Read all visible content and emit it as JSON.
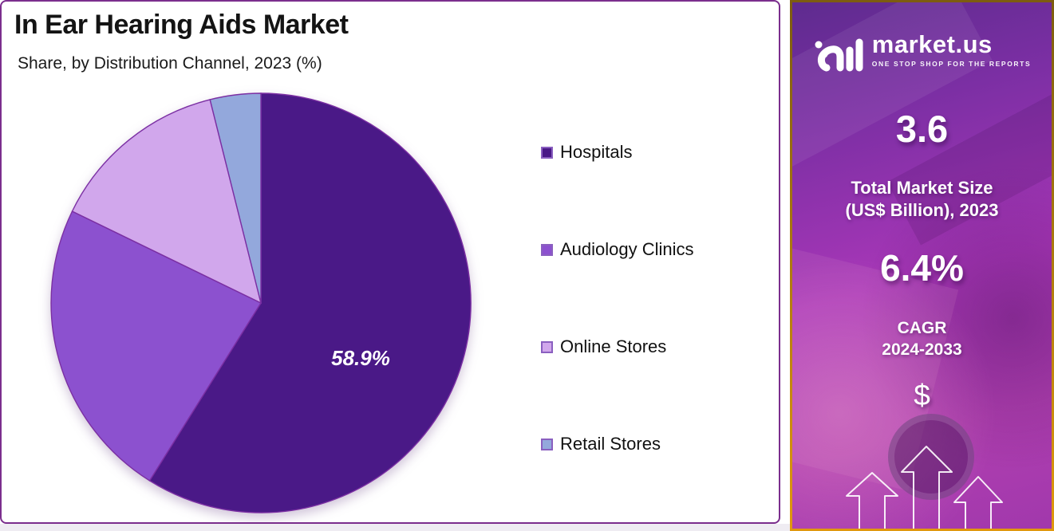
{
  "title": "In Ear Hearing Aids Market",
  "subtitle": "Share, by Distribution Channel, 2023 (%)",
  "chart_data": {
    "type": "pie",
    "title": "In Ear Hearing Aids Market",
    "subtitle": "Share, by Distribution Channel, 2023 (%)",
    "categories": [
      "Hospitals",
      "Audiology Clinics",
      "Online Stores",
      "Retail Stores"
    ],
    "values": [
      58.9,
      23.3,
      13.9,
      3.9
    ],
    "colors": [
      "#4A1987",
      "#8C51CF",
      "#D1A7EC",
      "#93A8DC"
    ],
    "slice_stroke": "#7B2FA3",
    "data_label": {
      "slice_index": 0,
      "text": "58.9%"
    },
    "start_angle_deg": 0,
    "direction": "clockwise",
    "legend_position": "right",
    "legend_swatch_border": "#8A5FC0"
  },
  "sidebar": {
    "brand_name": "market.us",
    "brand_tagline": "ONE STOP SHOP FOR THE REPORTS",
    "market_size_value": "3.6",
    "market_size_label1": "Total Market Size",
    "market_size_label2": "(US$ Billion), 2023",
    "cagr_value": "6.4%",
    "cagr_label1": "CAGR",
    "cagr_label2": "2024-2033",
    "currency_symbol": "$",
    "accent_border_top": "#7D5C10",
    "accent_border_bottom": "#E0980E"
  },
  "frame": {
    "card_border": "#7B2E8D",
    "card_background": "#FFFFFF",
    "bottom_strip": "#EFECF2"
  }
}
